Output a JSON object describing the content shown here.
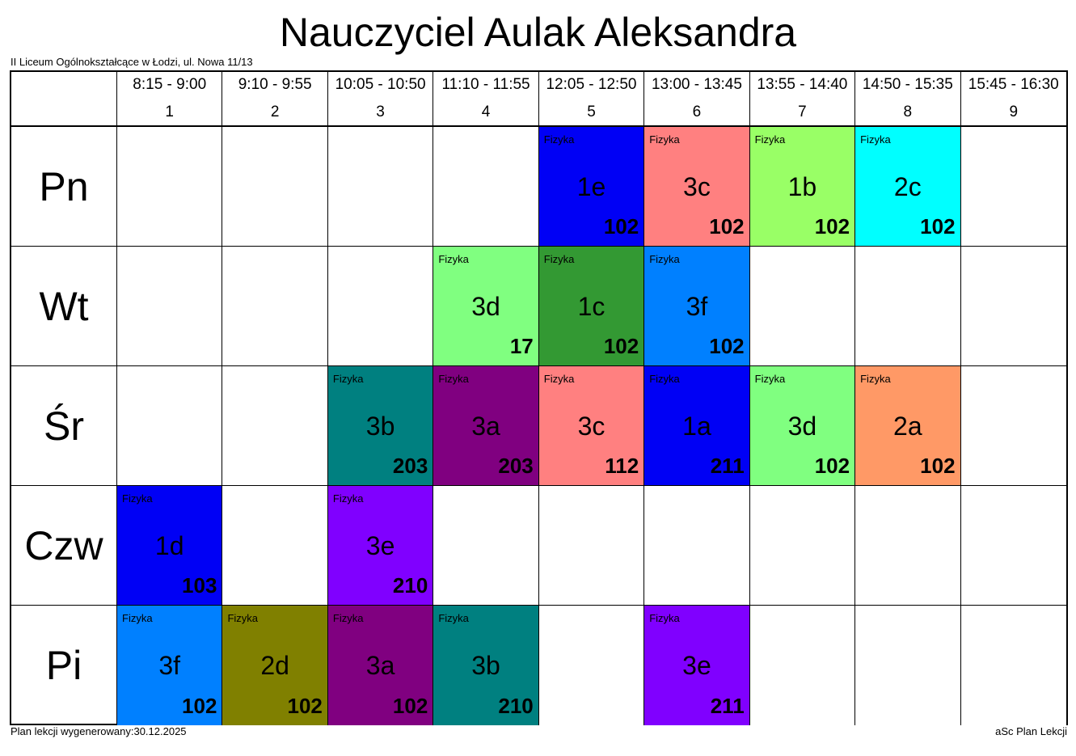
{
  "header": {
    "title": "Nauczyciel Aulak Aleksandra",
    "school": "II Liceum Ogólnokształcące w Łodzi, ul. Nowa 11/13"
  },
  "table": {
    "periods": [
      {
        "time": "8:15 - 9:00",
        "number": "1"
      },
      {
        "time": "9:10 - 9:55",
        "number": "2"
      },
      {
        "time": "10:05 - 10:50",
        "number": "3"
      },
      {
        "time": "11:10 - 11:55",
        "number": "4"
      },
      {
        "time": "12:05 - 12:50",
        "number": "5"
      },
      {
        "time": "13:00 - 13:45",
        "number": "6"
      },
      {
        "time": "13:55 - 14:40",
        "number": "7"
      },
      {
        "time": "14:50 - 15:35",
        "number": "8"
      },
      {
        "time": "15:45 - 16:30",
        "number": "9"
      }
    ],
    "days": [
      {
        "name": "Pn",
        "cells": [
          null,
          null,
          null,
          null,
          {
            "subject": "Fizyka",
            "class": "1e",
            "room": "102",
            "color": "#0000f5"
          },
          {
            "subject": "Fizyka",
            "class": "3c",
            "room": "102",
            "color": "#ff8080"
          },
          {
            "subject": "Fizyka",
            "class": "1b",
            "room": "102",
            "color": "#99ff66"
          },
          {
            "subject": "Fizyka",
            "class": "2c",
            "room": "102",
            "color": "#00ffff"
          },
          null
        ]
      },
      {
        "name": "Wt",
        "cells": [
          null,
          null,
          null,
          {
            "subject": "Fizyka",
            "class": "3d",
            "room": "17",
            "color": "#80ff80"
          },
          {
            "subject": "Fizyka",
            "class": "1c",
            "room": "102",
            "color": "#339933"
          },
          {
            "subject": "Fizyka",
            "class": "3f",
            "room": "102",
            "color": "#0080ff"
          },
          null,
          null,
          null
        ]
      },
      {
        "name": "Śr",
        "cells": [
          null,
          null,
          {
            "subject": "Fizyka",
            "class": "3b",
            "room": "203",
            "color": "#008080"
          },
          {
            "subject": "Fizyka",
            "class": "3a",
            "room": "203",
            "color": "#800080"
          },
          {
            "subject": "Fizyka",
            "class": "3c",
            "room": "112",
            "color": "#ff8080"
          },
          {
            "subject": "Fizyka",
            "class": "1a",
            "room": "211",
            "color": "#0000f5"
          },
          {
            "subject": "Fizyka",
            "class": "3d",
            "room": "102",
            "color": "#80ff80"
          },
          {
            "subject": "Fizyka",
            "class": "2a",
            "room": "102",
            "color": "#ff9966"
          },
          null
        ]
      },
      {
        "name": "Czw",
        "cells": [
          {
            "subject": "Fizyka",
            "class": "1d",
            "room": "103",
            "color": "#0000f5"
          },
          null,
          {
            "subject": "Fizyka",
            "class": "3e",
            "room": "210",
            "color": "#8000ff"
          },
          null,
          null,
          null,
          null,
          null,
          null
        ]
      },
      {
        "name": "Pi",
        "cells": [
          {
            "subject": "Fizyka",
            "class": "3f",
            "room": "102",
            "color": "#0080ff"
          },
          {
            "subject": "Fizyka",
            "class": "2d",
            "room": "102",
            "color": "#808000"
          },
          {
            "subject": "Fizyka",
            "class": "3a",
            "room": "102",
            "color": "#800080"
          },
          {
            "subject": "Fizyka",
            "class": "3b",
            "room": "210",
            "color": "#008080"
          },
          null,
          {
            "subject": "Fizyka",
            "class": "3e",
            "room": "211",
            "color": "#8000ff"
          },
          null,
          null,
          null
        ]
      }
    ]
  },
  "footer": {
    "generated": "Plan lekcji wygenerowany:30.12.2025",
    "software": "aSc Plan Lekcji"
  }
}
